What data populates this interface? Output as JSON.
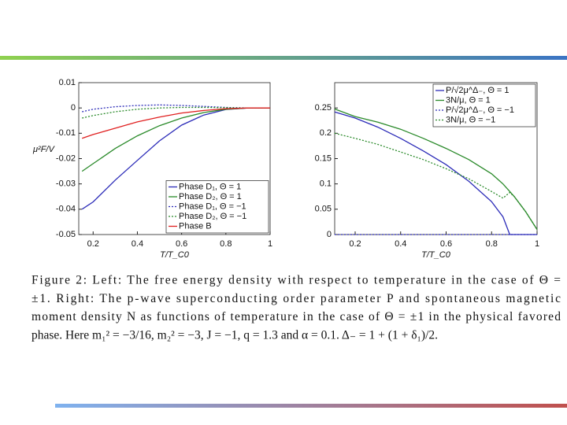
{
  "chart_data": [
    {
      "type": "line",
      "ylabel": "μ²F/V",
      "xlabel": "T/T_C0",
      "x": [
        0.15,
        0.2,
        0.3,
        0.4,
        0.5,
        0.6,
        0.7,
        0.8,
        0.9,
        1.0
      ],
      "xlim": [
        0.135,
        1
      ],
      "xticks": [
        0.2,
        0.4,
        0.6,
        0.8,
        1
      ],
      "ylim": [
        -0.05,
        0.01
      ],
      "yticks": [
        0.01,
        0,
        -0.01,
        -0.02,
        -0.03,
        -0.04,
        -0.05
      ],
      "legend": "lower right",
      "series": [
        {
          "name": "Phase D₁, Θ = 1",
          "color": "#2b2bb8",
          "linestyle": "solid",
          "values": [
            -0.04,
            -0.0371,
            -0.0285,
            -0.0207,
            -0.013,
            -0.0068,
            -0.0028,
            -0.0006,
            0,
            0
          ]
        },
        {
          "name": "Phase D₂, Θ = 1",
          "color": "#2a8a2a",
          "linestyle": "solid",
          "values": [
            -0.025,
            -0.022,
            -0.016,
            -0.011,
            -0.007,
            -0.004,
            -0.0018,
            -0.0005,
            0,
            0
          ]
        },
        {
          "name": "Phase D₁, Θ = −1",
          "color": "#2b2bb8",
          "linestyle": "dashed",
          "values": [
            -0.0015,
            -0.0005,
            0.0005,
            0.001,
            0.0012,
            0.001,
            0.0006,
            0.0002,
            0,
            0
          ]
        },
        {
          "name": "Phase D₂, Θ = −1",
          "color": "#2a8a2a",
          "linestyle": "dashed",
          "values": [
            -0.004,
            -0.003,
            -0.0015,
            -0.0005,
            0,
            0.0002,
            0.0002,
            0.0001,
            0,
            0
          ]
        },
        {
          "name": "Phase B",
          "color": "#e02020",
          "linestyle": "solid",
          "values": [
            -0.012,
            -0.0105,
            -0.008,
            -0.0055,
            -0.0036,
            -0.002,
            -0.001,
            -0.0003,
            0,
            0
          ]
        }
      ]
    },
    {
      "type": "line",
      "xlabel": "T/T_C0",
      "x": [
        0.11,
        0.2,
        0.3,
        0.4,
        0.5,
        0.6,
        0.7,
        0.8,
        0.85,
        0.88,
        0.9,
        0.95,
        1
      ],
      "xlim": [
        0.11,
        1
      ],
      "xticks": [
        0.2,
        0.4,
        0.6,
        0.8,
        1
      ],
      "ylim": [
        0,
        0.3
      ],
      "yticks": [
        0,
        0.05,
        0.1,
        0.15,
        0.2,
        0.25
      ],
      "legend": "upper right",
      "series": [
        {
          "name": "P/√2μ^Δ₋, Θ = 1",
          "color": "#2b2bb8",
          "linestyle": "solid",
          "values": [
            0.242,
            0.23,
            0.212,
            0.19,
            0.165,
            0.138,
            0.105,
            0.065,
            0.035,
            0,
            0,
            0,
            0
          ]
        },
        {
          "name": "3N/μ, Θ = 1",
          "color": "#2a8a2a",
          "linestyle": "solid",
          "values": [
            0.248,
            0.233,
            0.222,
            0.208,
            0.19,
            0.17,
            0.148,
            0.12,
            0.1,
            0.085,
            0.075,
            0.045,
            0.01
          ]
        },
        {
          "name": "P/√2μ^Δ₋, Θ = −1",
          "color": "#2b2bb8",
          "linestyle": "dashed",
          "values": [
            0,
            0,
            0,
            0,
            0,
            0,
            0,
            0,
            0,
            0,
            0,
            0,
            0
          ]
        },
        {
          "name": "3N/μ, Θ = −1",
          "color": "#2a8a2a",
          "linestyle": "dashed",
          "values": [
            0.2,
            0.19,
            0.178,
            0.163,
            0.148,
            0.13,
            0.11,
            0.085,
            0.072,
            0.083,
            0.075,
            0.045,
            0.01
          ]
        }
      ]
    }
  ],
  "caption": [
    "Figure 2:  Left:  The free energy density with respect to temperature in the case of Θ =",
    "±1.  Right:  The p-wave superconducting order parameter P and spontaneous magnetic",
    "moment density N as functions of temperature in the case of Θ = ±1 in the physical favored",
    "phase.  Here m₁² = −3/16, m₂² = −3, J = −1, q = 1.3 and α = 0.1.  Δ₋ = 1 + (1 + δ₁)/2."
  ]
}
